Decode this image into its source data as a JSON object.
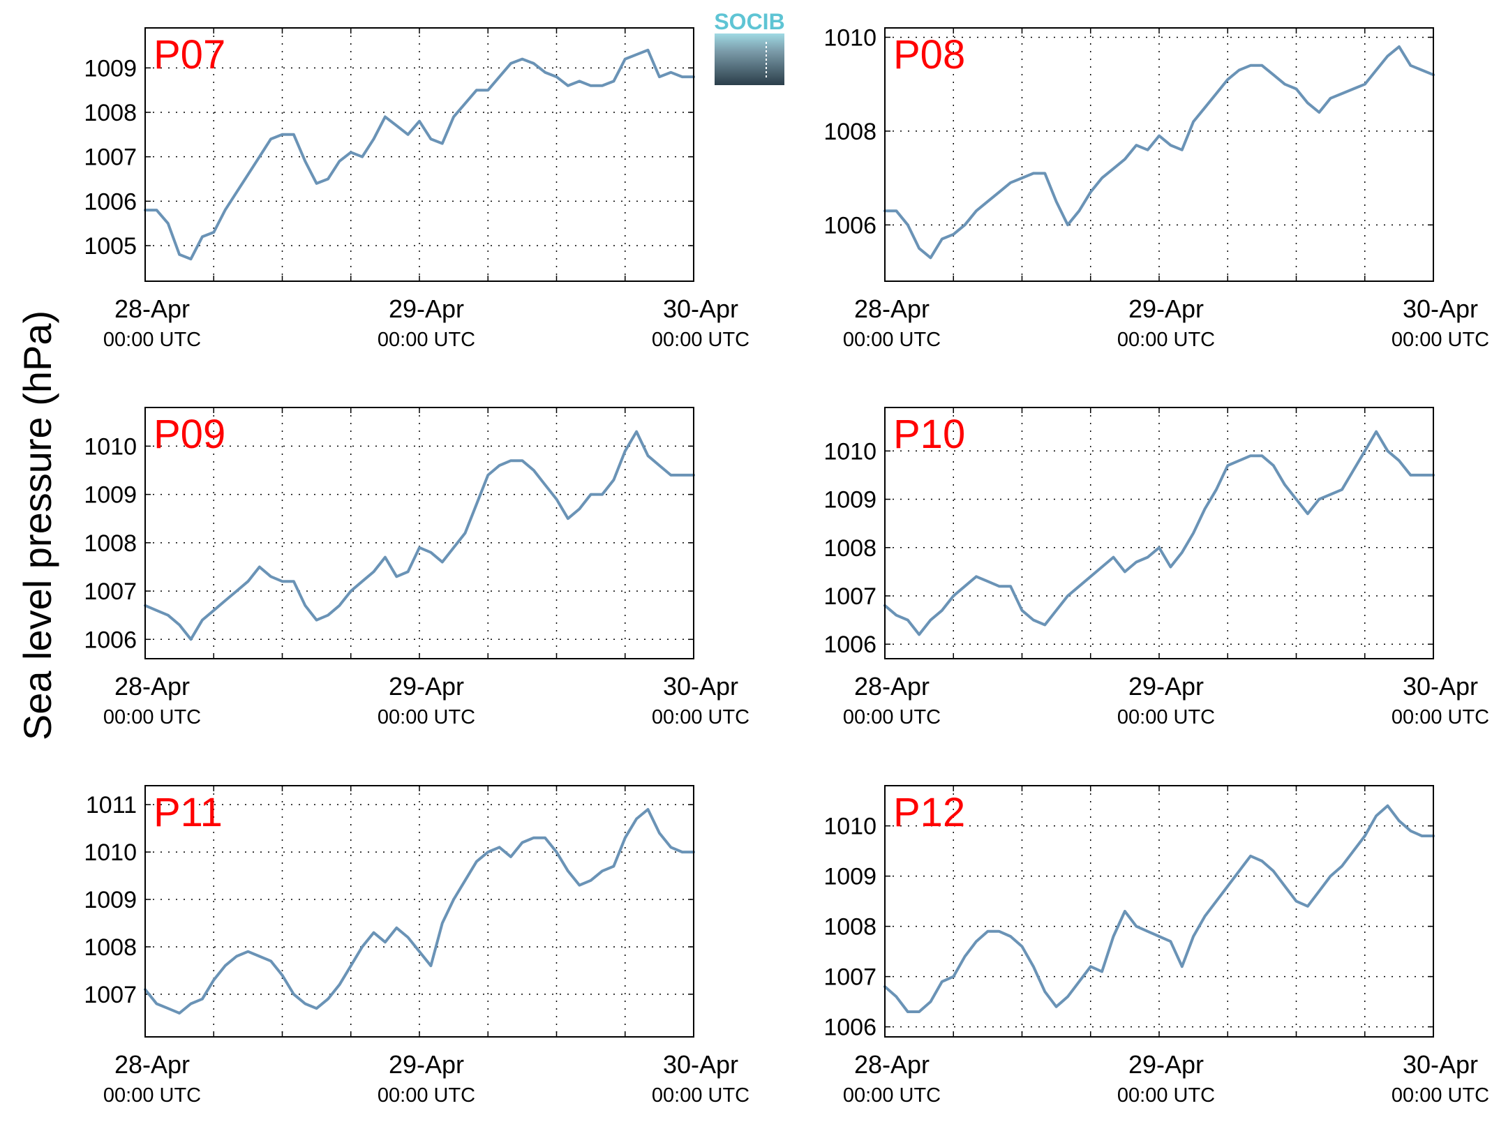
{
  "logo": {
    "text": "SOCIB"
  },
  "ylabel": "Sea level pressure (hPa)",
  "colors": {
    "line": "#6a93b6",
    "title": "#ff0000",
    "logo_top": "#5ec4d4",
    "logo_bottom": "#2b3e4a"
  },
  "chart_data": [
    {
      "type": "line",
      "title": "P07",
      "x_ticks": [
        {
          "date": "28-Apr",
          "time": "00:00 UTC"
        },
        {
          "date": "29-Apr",
          "time": "00:00 UTC"
        },
        {
          "date": "30-Apr",
          "time": "00:00 UTC"
        }
      ],
      "xlim_hours": [
        0,
        48
      ],
      "ylim": [
        1004.2,
        1009.9
      ],
      "yticks": [
        1005,
        1006,
        1007,
        1008,
        1009
      ],
      "grid": true,
      "series": [
        {
          "x_hours": [
            0,
            1,
            2,
            3,
            4,
            5,
            6,
            7,
            8,
            9,
            10,
            11,
            12,
            13,
            14,
            15,
            16,
            17,
            18,
            19,
            20,
            21,
            22,
            23,
            24,
            25,
            26,
            27,
            28,
            29,
            30,
            31,
            32,
            33,
            34,
            35,
            36,
            37,
            38,
            39,
            40,
            41,
            42,
            43,
            44,
            45,
            46,
            47,
            48
          ],
          "values": [
            1005.8,
            1005.8,
            1005.5,
            1004.8,
            1004.7,
            1005.2,
            1005.3,
            1005.8,
            1006.2,
            1006.6,
            1007.0,
            1007.4,
            1007.5,
            1007.5,
            1006.9,
            1006.4,
            1006.5,
            1006.9,
            1007.1,
            1007.0,
            1007.4,
            1007.9,
            1007.7,
            1007.5,
            1007.8,
            1007.4,
            1007.3,
            1007.9,
            1008.2,
            1008.5,
            1008.5,
            1008.8,
            1009.1,
            1009.2,
            1009.1,
            1008.9,
            1008.8,
            1008.6,
            1008.7,
            1008.6,
            1008.6,
            1008.7,
            1009.2,
            1009.3,
            1009.4,
            1008.8,
            1008.9,
            1008.8,
            1008.8
          ]
        }
      ]
    },
    {
      "type": "line",
      "title": "P08",
      "x_ticks": [
        {
          "date": "28-Apr",
          "time": "00:00 UTC"
        },
        {
          "date": "29-Apr",
          "time": "00:00 UTC"
        },
        {
          "date": "30-Apr",
          "time": "00:00 UTC"
        }
      ],
      "xlim_hours": [
        0,
        48
      ],
      "ylim": [
        1004.8,
        1010.2
      ],
      "yticks": [
        1006,
        1008,
        1010
      ],
      "grid": true,
      "series": [
        {
          "x_hours": [
            0,
            1,
            2,
            3,
            4,
            5,
            6,
            7,
            8,
            9,
            10,
            11,
            12,
            13,
            14,
            15,
            16,
            17,
            18,
            19,
            20,
            21,
            22,
            23,
            24,
            25,
            26,
            27,
            28,
            29,
            30,
            31,
            32,
            33,
            34,
            35,
            36,
            37,
            38,
            39,
            40,
            41,
            42,
            43,
            44,
            45,
            46,
            47,
            48
          ],
          "values": [
            1006.3,
            1006.3,
            1006.0,
            1005.5,
            1005.3,
            1005.7,
            1005.8,
            1006.0,
            1006.3,
            1006.5,
            1006.7,
            1006.9,
            1007.0,
            1007.1,
            1007.1,
            1006.5,
            1006.0,
            1006.3,
            1006.7,
            1007.0,
            1007.2,
            1007.4,
            1007.7,
            1007.6,
            1007.9,
            1007.7,
            1007.6,
            1008.2,
            1008.5,
            1008.8,
            1009.1,
            1009.3,
            1009.4,
            1009.4,
            1009.2,
            1009.0,
            1008.9,
            1008.6,
            1008.4,
            1008.7,
            1008.8,
            1008.9,
            1009.0,
            1009.3,
            1009.6,
            1009.8,
            1009.4,
            1009.3,
            1009.2
          ]
        }
      ]
    },
    {
      "type": "line",
      "title": "P09",
      "x_ticks": [
        {
          "date": "28-Apr",
          "time": "00:00 UTC"
        },
        {
          "date": "29-Apr",
          "time": "00:00 UTC"
        },
        {
          "date": "30-Apr",
          "time": "00:00 UTC"
        }
      ],
      "xlim_hours": [
        0,
        48
      ],
      "ylim": [
        1005.6,
        1010.8
      ],
      "yticks": [
        1006,
        1007,
        1008,
        1009,
        1010
      ],
      "grid": true,
      "series": [
        {
          "x_hours": [
            0,
            1,
            2,
            3,
            4,
            5,
            6,
            7,
            8,
            9,
            10,
            11,
            12,
            13,
            14,
            15,
            16,
            17,
            18,
            19,
            20,
            21,
            22,
            23,
            24,
            25,
            26,
            27,
            28,
            29,
            30,
            31,
            32,
            33,
            34,
            35,
            36,
            37,
            38,
            39,
            40,
            41,
            42,
            43,
            44,
            45,
            46,
            47,
            48
          ],
          "values": [
            1006.7,
            1006.6,
            1006.5,
            1006.3,
            1006.0,
            1006.4,
            1006.6,
            1006.8,
            1007.0,
            1007.2,
            1007.5,
            1007.3,
            1007.2,
            1007.2,
            1006.7,
            1006.4,
            1006.5,
            1006.7,
            1007.0,
            1007.2,
            1007.4,
            1007.7,
            1007.3,
            1007.4,
            1007.9,
            1007.8,
            1007.6,
            1007.9,
            1008.2,
            1008.8,
            1009.4,
            1009.6,
            1009.7,
            1009.7,
            1009.5,
            1009.2,
            1008.9,
            1008.5,
            1008.7,
            1009.0,
            1009.0,
            1009.3,
            1009.9,
            1010.3,
            1009.8,
            1009.6,
            1009.4,
            1009.4,
            1009.4
          ]
        }
      ]
    },
    {
      "type": "line",
      "title": "P10",
      "x_ticks": [
        {
          "date": "28-Apr",
          "time": "00:00 UTC"
        },
        {
          "date": "29-Apr",
          "time": "00:00 UTC"
        },
        {
          "date": "30-Apr",
          "time": "00:00 UTC"
        }
      ],
      "xlim_hours": [
        0,
        48
      ],
      "ylim": [
        1005.7,
        1010.9
      ],
      "yticks": [
        1006,
        1007,
        1008,
        1009,
        1010
      ],
      "grid": true,
      "series": [
        {
          "x_hours": [
            0,
            1,
            2,
            3,
            4,
            5,
            6,
            7,
            8,
            9,
            10,
            11,
            12,
            13,
            14,
            15,
            16,
            17,
            18,
            19,
            20,
            21,
            22,
            23,
            24,
            25,
            26,
            27,
            28,
            29,
            30,
            31,
            32,
            33,
            34,
            35,
            36,
            37,
            38,
            39,
            40,
            41,
            42,
            43,
            44,
            45,
            46,
            47,
            48
          ],
          "values": [
            1006.8,
            1006.6,
            1006.5,
            1006.2,
            1006.5,
            1006.7,
            1007.0,
            1007.2,
            1007.4,
            1007.3,
            1007.2,
            1007.2,
            1006.7,
            1006.5,
            1006.4,
            1006.7,
            1007.0,
            1007.2,
            1007.4,
            1007.6,
            1007.8,
            1007.5,
            1007.7,
            1007.8,
            1008.0,
            1007.6,
            1007.9,
            1008.3,
            1008.8,
            1009.2,
            1009.7,
            1009.8,
            1009.9,
            1009.9,
            1009.7,
            1009.3,
            1009.0,
            1008.7,
            1009.0,
            1009.1,
            1009.2,
            1009.6,
            1010.0,
            1010.4,
            1010.0,
            1009.8,
            1009.5,
            1009.5,
            1009.5
          ]
        }
      ]
    },
    {
      "type": "line",
      "title": "P11",
      "x_ticks": [
        {
          "date": "28-Apr",
          "time": "00:00 UTC"
        },
        {
          "date": "29-Apr",
          "time": "00:00 UTC"
        },
        {
          "date": "30-Apr",
          "time": "00:00 UTC"
        }
      ],
      "xlim_hours": [
        0,
        48
      ],
      "ylim": [
        1006.1,
        1011.4
      ],
      "yticks": [
        1007,
        1008,
        1009,
        1010,
        1011
      ],
      "grid": true,
      "series": [
        {
          "x_hours": [
            0,
            1,
            2,
            3,
            4,
            5,
            6,
            7,
            8,
            9,
            10,
            11,
            12,
            13,
            14,
            15,
            16,
            17,
            18,
            19,
            20,
            21,
            22,
            23,
            24,
            25,
            26,
            27,
            28,
            29,
            30,
            31,
            32,
            33,
            34,
            35,
            36,
            37,
            38,
            39,
            40,
            41,
            42,
            43,
            44,
            45,
            46,
            47,
            48
          ],
          "values": [
            1007.1,
            1006.8,
            1006.7,
            1006.6,
            1006.8,
            1006.9,
            1007.3,
            1007.6,
            1007.8,
            1007.9,
            1007.8,
            1007.7,
            1007.4,
            1007.0,
            1006.8,
            1006.7,
            1006.9,
            1007.2,
            1007.6,
            1008.0,
            1008.3,
            1008.1,
            1008.4,
            1008.2,
            1007.9,
            1007.6,
            1008.5,
            1009.0,
            1009.4,
            1009.8,
            1010.0,
            1010.1,
            1009.9,
            1010.2,
            1010.3,
            1010.3,
            1010.0,
            1009.6,
            1009.3,
            1009.4,
            1009.6,
            1009.7,
            1010.3,
            1010.7,
            1010.9,
            1010.4,
            1010.1,
            1010.0,
            1010.0
          ]
        }
      ]
    },
    {
      "type": "line",
      "title": "P12",
      "x_ticks": [
        {
          "date": "28-Apr",
          "time": "00:00 UTC"
        },
        {
          "date": "29-Apr",
          "time": "00:00 UTC"
        },
        {
          "date": "30-Apr",
          "time": "00:00 UTC"
        }
      ],
      "xlim_hours": [
        0,
        48
      ],
      "ylim": [
        1005.8,
        1010.8
      ],
      "yticks": [
        1006,
        1007,
        1008,
        1009,
        1010
      ],
      "grid": true,
      "series": [
        {
          "x_hours": [
            0,
            1,
            2,
            3,
            4,
            5,
            6,
            7,
            8,
            9,
            10,
            11,
            12,
            13,
            14,
            15,
            16,
            17,
            18,
            19,
            20,
            21,
            22,
            23,
            24,
            25,
            26,
            27,
            28,
            29,
            30,
            31,
            32,
            33,
            34,
            35,
            36,
            37,
            38,
            39,
            40,
            41,
            42,
            43,
            44,
            45,
            46,
            47,
            48
          ],
          "values": [
            1006.8,
            1006.6,
            1006.3,
            1006.3,
            1006.5,
            1006.9,
            1007.0,
            1007.4,
            1007.7,
            1007.9,
            1007.9,
            1007.8,
            1007.6,
            1007.2,
            1006.7,
            1006.4,
            1006.6,
            1006.9,
            1007.2,
            1007.1,
            1007.8,
            1008.3,
            1008.0,
            1007.9,
            1007.8,
            1007.7,
            1007.2,
            1007.8,
            1008.2,
            1008.5,
            1008.8,
            1009.1,
            1009.4,
            1009.3,
            1009.1,
            1008.8,
            1008.5,
            1008.4,
            1008.7,
            1009.0,
            1009.2,
            1009.5,
            1009.8,
            1010.2,
            1010.4,
            1010.1,
            1009.9,
            1009.8,
            1009.8
          ]
        }
      ]
    }
  ]
}
